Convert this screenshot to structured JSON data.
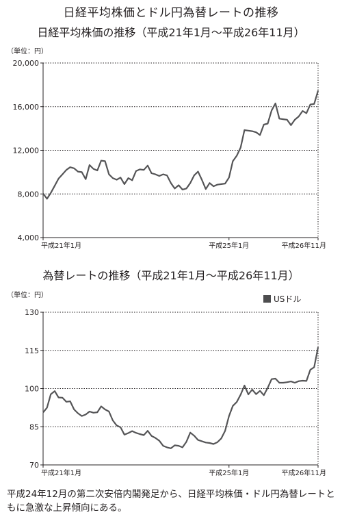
{
  "main_title": "日経平均株価とドル円為替レートの推移",
  "footnote": "平成24年12月の第二次安倍内閣発足から、日経平均株価・ドル円為替レートともに急激な上昇傾向にある。",
  "colors": {
    "line": "#555557",
    "axis": "#231f20"
  },
  "chart_data": [
    {
      "type": "line",
      "title": "日経平均株価の推移（平成21年1月〜平成26年11月）",
      "unit": "（単位：円）",
      "ylim": [
        4000,
        20000
      ],
      "yticks": [
        4000,
        8000,
        12000,
        16000,
        20000
      ],
      "ytick_labels": [
        "4,000",
        "8,000",
        "12,000",
        "16,000",
        "20,000"
      ],
      "grid": "horizontal dotted",
      "xlim": [
        0,
        71
      ],
      "x_labels": [
        {
          "x": 0,
          "label": "平成21年1月"
        },
        {
          "x": 48,
          "label": "平成25年1月"
        },
        {
          "x": 71,
          "label": "平成26年11月"
        }
      ],
      "series": [
        {
          "values": [
            8050,
            7550,
            8100,
            8750,
            9400,
            9800,
            10200,
            10450,
            10350,
            10050,
            10000,
            9350,
            10650,
            10300,
            10150,
            11050,
            11000,
            9800,
            9450,
            9300,
            9500,
            8900,
            9450,
            9250,
            10100,
            10250,
            10200,
            10600,
            9900,
            9800,
            9650,
            9800,
            9700,
            9000,
            8500,
            8800,
            8400,
            8500,
            9000,
            9700,
            10050,
            9300,
            8450,
            9000,
            8700,
            8850,
            8900,
            8950,
            9500,
            11000,
            11500,
            12250,
            13850,
            13800,
            13750,
            13650,
            13400,
            14350,
            14450,
            15650,
            16300,
            14900,
            14850,
            14800,
            14300,
            14800,
            15100,
            15600,
            15400,
            16200,
            16250,
            17450
          ]
        }
      ]
    },
    {
      "type": "line",
      "title": "為替レートの推移（平成21年1月〜平成26年11月）",
      "unit": "（単位：円）",
      "ylim": [
        70,
        130
      ],
      "yticks": [
        70,
        85,
        100,
        115,
        130
      ],
      "ytick_labels": [
        "70",
        "85",
        "100",
        "115",
        "130"
      ],
      "grid": "horizontal dotted",
      "legend": "top-right",
      "xlim": [
        0,
        71
      ],
      "x_labels": [
        {
          "x": 0,
          "label": "平成21年1月"
        },
        {
          "x": 48,
          "label": "平成25年1月"
        },
        {
          "x": 71,
          "label": "平成26年11月"
        }
      ],
      "series": [
        {
          "name": "USドル",
          "values": [
            90.6,
            92.5,
            97.8,
            99,
            96.5,
            96.4,
            94.8,
            95,
            91.8,
            90.3,
            89.2,
            89.8,
            91,
            90.5,
            90.7,
            93,
            91.8,
            91,
            87.5,
            85.5,
            84.8,
            81.9,
            82.5,
            83.3,
            82.6,
            82.1,
            81.7,
            83.4,
            81.4,
            80.6,
            79.5,
            77.5,
            76.9,
            76.5,
            77.7,
            77.5,
            76.9,
            79.1,
            82.7,
            81.5,
            79.8,
            79.3,
            78.8,
            78.6,
            78.2,
            78.9,
            80.4,
            83.4,
            89.2,
            93.2,
            94.7,
            97.6,
            101.2,
            97.7,
            99.6,
            97.8,
            99.1,
            97.4,
            100.3,
            103.7,
            103.9,
            102.3,
            102.3,
            102.5,
            102.8,
            102.3,
            102.9,
            103.1,
            103.0,
            107.4,
            108.4,
            116.2
          ]
        }
      ]
    }
  ]
}
